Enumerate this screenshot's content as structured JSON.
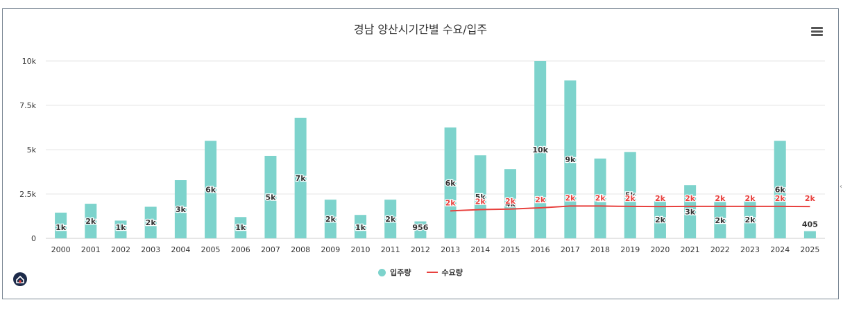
{
  "colors": {
    "bar": "#7dd3cc",
    "line": "#e8413e",
    "grid": "#e6e6e6",
    "axis_text": "#333333",
    "bar_label": "#333333",
    "line_label": "#e8413e"
  },
  "icons": {
    "menu": "hamburger-menu-icon",
    "logo": "house-logo-icon"
  },
  "chart_data": {
    "type": "bar",
    "title": "경남 양산시기간별 수요/입주",
    "xlabel": "",
    "ylabel": "",
    "ylim": [
      0,
      10000
    ],
    "y_ticks": [
      0,
      2500,
      5000,
      7500,
      10000
    ],
    "y_tick_labels": [
      "0",
      "2.5k",
      "5k",
      "7.5k",
      "10k"
    ],
    "grid": true,
    "legend_position": "bottom-center",
    "categories": [
      "2000",
      "2001",
      "2002",
      "2003",
      "2004",
      "2005",
      "2006",
      "2007",
      "2008",
      "2009",
      "2010",
      "2011",
      "2012",
      "2013",
      "2014",
      "2015",
      "2016",
      "2017",
      "2018",
      "2019",
      "2020",
      "2021",
      "2022",
      "2023",
      "2024",
      "2025"
    ],
    "series": [
      {
        "name": "입주량",
        "type": "bar",
        "values": [
          1450,
          1950,
          1000,
          1780,
          3280,
          5500,
          1200,
          4650,
          6800,
          2180,
          1320,
          2180,
          956,
          6250,
          4680,
          3900,
          10000,
          8900,
          4500,
          4870,
          2100,
          3000,
          2050,
          2100,
          5500,
          405
        ],
        "labels": [
          "1k",
          "2k",
          "1k",
          "2k",
          "3k",
          "6k",
          "1k",
          "5k",
          "7k",
          "2k",
          "1k",
          "2k",
          "956",
          "6k",
          "5k",
          "4k",
          "10k",
          "9k",
          "4k",
          "5k",
          "2k",
          "3k",
          "2k",
          "2k",
          "6k",
          "405"
        ]
      },
      {
        "name": "수요량",
        "type": "line",
        "values": [
          null,
          null,
          null,
          null,
          null,
          null,
          null,
          null,
          null,
          null,
          null,
          null,
          null,
          1550,
          1620,
          1650,
          1720,
          1820,
          1820,
          1800,
          1790,
          1800,
          1800,
          1800,
          1800,
          1790
        ],
        "labels": [
          "",
          "",
          "",
          "",
          "",
          "",
          "",
          "",
          "",
          "",
          "",
          "",
          "",
          "2k",
          "2k",
          "2k",
          "2k",
          "2k",
          "2k",
          "2k",
          "2k",
          "2k",
          "2k",
          "2k",
          "2k",
          "2k"
        ]
      }
    ]
  }
}
